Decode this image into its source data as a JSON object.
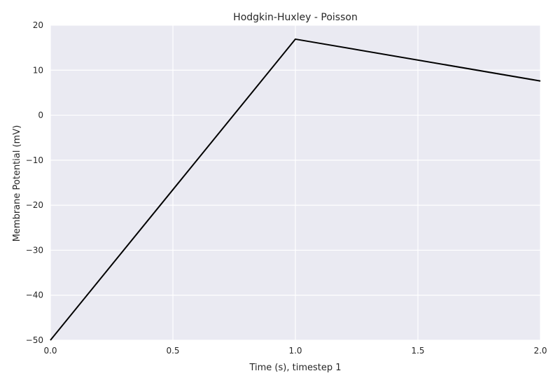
{
  "chart_data": {
    "type": "line",
    "title": "Hodgkin-Huxley - Poisson",
    "xlabel": "Time (s), timestep 1",
    "ylabel": "Membrane Potential (mV)",
    "xlim": [
      0,
      2
    ],
    "ylim": [
      -50,
      20
    ],
    "xticks": [
      0,
      0.5,
      1,
      1.5,
      2
    ],
    "xtick_labels": [
      "0.0",
      "0.5",
      "1.0",
      "1.5",
      "2.0"
    ],
    "yticks": [
      -50,
      -40,
      -30,
      -20,
      -10,
      0,
      10,
      20
    ],
    "ytick_labels": [
      "−50",
      "−40",
      "−30",
      "−20",
      "−10",
      "0",
      "10",
      "20"
    ],
    "grid": true,
    "series": [
      {
        "x": [
          0,
          1,
          2
        ],
        "y": [
          -50,
          16.9,
          7.6
        ],
        "color": "#000000"
      }
    ],
    "colors": {
      "plot_background": "#eaeaf2",
      "grid": "#ffffff",
      "line": "#000000"
    }
  }
}
